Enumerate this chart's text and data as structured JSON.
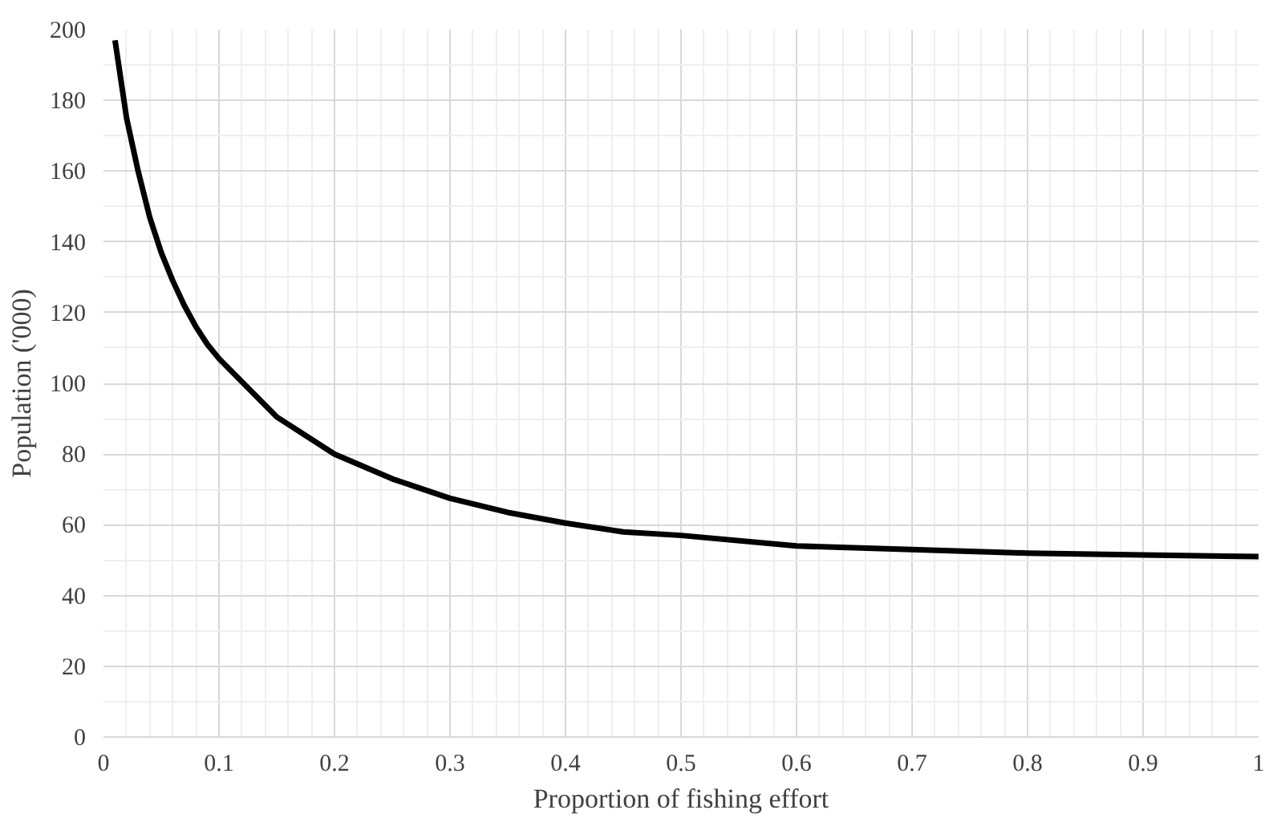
{
  "chart_data": {
    "type": "line",
    "xlabel": "Proportion of fishing effort",
    "ylabel": "Population ('000)",
    "x": [
      0.01,
      0.02,
      0.03,
      0.04,
      0.05,
      0.06,
      0.07,
      0.08,
      0.09,
      0.1,
      0.15,
      0.2,
      0.25,
      0.3,
      0.35,
      0.4,
      0.45,
      0.5,
      0.6,
      0.7,
      0.8,
      0.9,
      1.0
    ],
    "series": [
      {
        "color": "#000000",
        "values": [
          197,
          175,
          160,
          147,
          137,
          129,
          122,
          116,
          111,
          107,
          90.5,
          80,
          73,
          67.5,
          63.5,
          60.5,
          58,
          57,
          54,
          53,
          52,
          51.5,
          51
        ]
      }
    ],
    "xlim": [
      0,
      1
    ],
    "ylim": [
      0,
      200
    ],
    "xticks": [
      0,
      0.1,
      0.2,
      0.3,
      0.4,
      0.5,
      0.6,
      0.7,
      0.8,
      0.9,
      1
    ],
    "yticks": [
      0,
      20,
      40,
      60,
      80,
      100,
      120,
      140,
      160,
      180,
      200
    ],
    "grid": true,
    "marker": "none",
    "line_style": "solid"
  }
}
